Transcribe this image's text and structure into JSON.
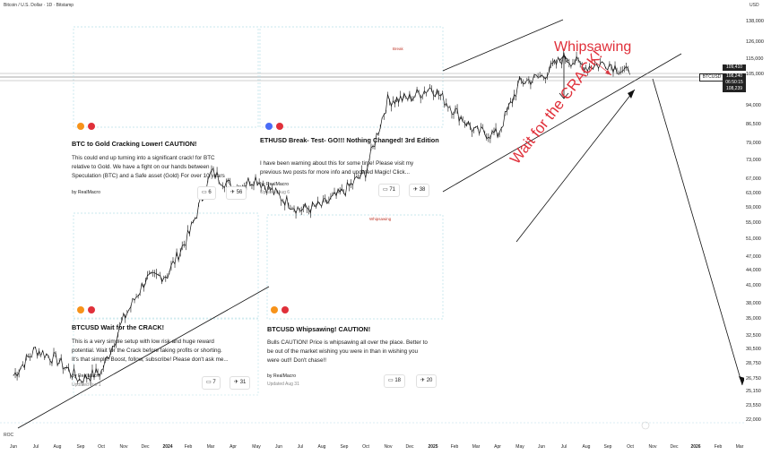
{
  "header": {
    "symbol_line": "Bitcoin / U.S. Dollar · 1D · Bitstamp",
    "currency": "USD",
    "indicator": "ROC"
  },
  "price_axis": {
    "labels": [
      "138,000",
      "126,000",
      "115,000",
      "105,000",
      "94,000",
      "86,500",
      "79,000",
      "73,000",
      "67,000",
      "63,000",
      "59,000",
      "55,000",
      "51,000",
      "47,000",
      "44,000",
      "41,000",
      "38,000",
      "35,000",
      "32,500",
      "30,500",
      "28,750",
      "26,750",
      "25,150",
      "23,550",
      "22,000"
    ],
    "tags": {
      "symbol": "BTCUSD",
      "top": "109,410",
      "last": "108,240",
      "countdown": "06:50:15",
      "bottom": "108,239"
    }
  },
  "time_axis": {
    "labels": [
      "Jun",
      "Jul",
      "Aug",
      "Sep",
      "Oct",
      "Nov",
      "Dec",
      "2024",
      "Feb",
      "Mar",
      "Apr",
      "May",
      "Jun",
      "Jul",
      "Aug",
      "Sep",
      "Oct",
      "Nov",
      "Dec",
      "2025",
      "Feb",
      "Mar",
      "Apr",
      "May",
      "Jun",
      "Jul",
      "Aug",
      "Sep",
      "Oct",
      "Nov",
      "Dec",
      "2026",
      "Feb",
      "Mar"
    ]
  },
  "annotations": {
    "whipsawing": "Whipsawing",
    "wait_crack": "Wait for the CRACK!"
  },
  "ideas": [
    {
      "title": "BTC to Gold Cracking Lower! CAUTION!",
      "body": [
        "This could end up turning into a significant crack! for BTC",
        "relative to Gold. We have a fight on our hands between",
        "Speculation (BTC) and a Safe asset (Gold) For over 10 years"
      ],
      "author": "by RealMacro",
      "updated": "",
      "comments": "6",
      "boosts": "56"
    },
    {
      "title": "ETHUSD Break- Test- GO!!! Nothing Changed! 3rd Edition",
      "body": [
        "I have been warning about this for some time! Please visit my",
        "previous two posts for more info and updated Magic! Click..."
      ],
      "author": "by RealMacro",
      "updated": "Updated Aug 6",
      "comments": "71",
      "boosts": "38"
    },
    {
      "title": "BTCUSD Wait for the CRACK!",
      "body": [
        "This is a very simple setup with low risk and huge reward",
        "potential. Wait for the Crack before taking profits or shorting.",
        "It's that simple. Boost, follow, subscribe! Please don't ask me..."
      ],
      "author": "by RealMacro",
      "updated": "Updated Jun 1",
      "comments": "7",
      "boosts": "31"
    },
    {
      "title": "BTCUSD Whipsawing! CAUTION!",
      "body": [
        "Bulls CAUTION! Price is whipsawing all over the place. Better to",
        "be out of the market wishing you were in than in wishing you",
        "were out!! Don't chase!!"
      ],
      "author": "by RealMacro",
      "updated": "Updated Aug 31",
      "comments": "18",
      "boosts": "20"
    }
  ],
  "thumb_labels": {
    "t3": "Whipsawing",
    "t2": "Break"
  },
  "colors": {
    "candle": "#111111",
    "annotation": "#e0303a",
    "dashed_border": "#b7dfe8",
    "price_tag": "#222222"
  },
  "chart_data": {
    "type": "line",
    "title": "Bitcoin / U.S. Dollar · 1D · Bitstamp",
    "xlabel": "",
    "ylabel": "USD",
    "scale": "log",
    "ylim": [
      22000,
      138000
    ],
    "x": [
      "2023-06",
      "2023-07",
      "2023-08",
      "2023-09",
      "2023-10",
      "2023-11",
      "2023-12",
      "2024-01",
      "2024-02",
      "2024-03",
      "2024-04",
      "2024-05",
      "2024-06",
      "2024-07",
      "2024-08",
      "2024-09",
      "2024-10",
      "2024-11",
      "2024-12",
      "2025-01",
      "2025-02",
      "2025-03",
      "2025-04",
      "2025-05",
      "2025-06",
      "2025-07",
      "2025-08",
      "2025-09",
      "2025-10"
    ],
    "series": [
      {
        "values": [
          27000,
          30500,
          29000,
          26500,
          27500,
          35000,
          42000,
          43000,
          52000,
          69000,
          64000,
          67000,
          62000,
          58000,
          59000,
          63000,
          69000,
          96000,
          97000,
          102000,
          92000,
          83000,
          82000,
          104000,
          107000,
          117000,
          112000,
          114000,
          108240
        ]
      }
    ],
    "last_price": 108240
  }
}
